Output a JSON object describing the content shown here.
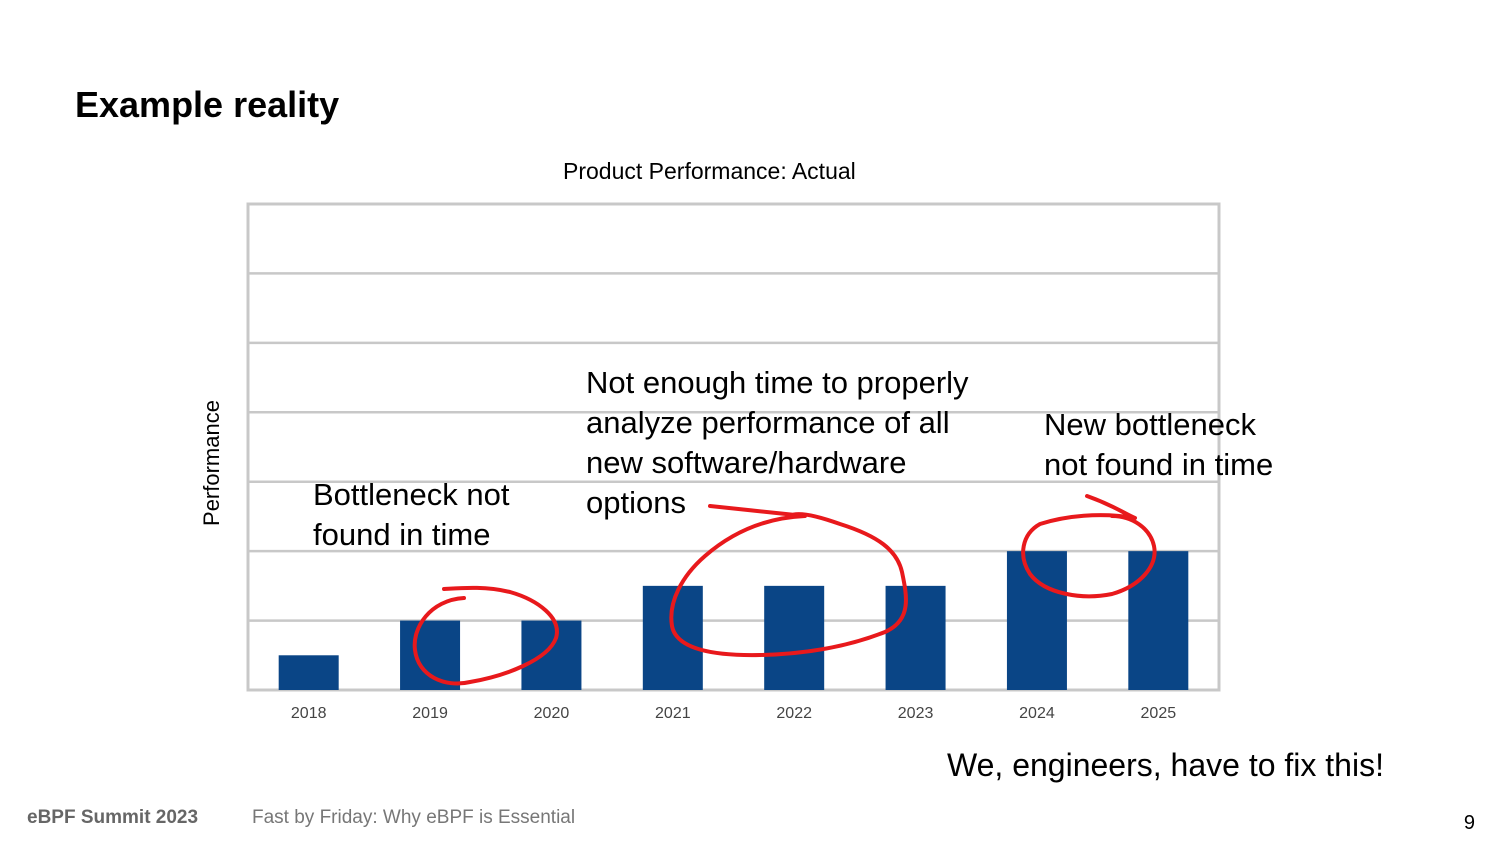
{
  "slide": {
    "title": "Example reality",
    "conclusion": "We, engineers, have to fix this!",
    "footer_event": "eBPF Summit 2023",
    "footer_talk": "Fast by Friday: Why eBPF is Essential",
    "page_number": "9"
  },
  "annotations": [
    {
      "text": "Bottleneck not\nfound in time"
    },
    {
      "text": "Not enough time to properly\nanalyze performance of all\nnew software/hardware\noptions"
    },
    {
      "text": "New bottleneck\nnot found in time"
    }
  ],
  "colors": {
    "bar": "#0a4586",
    "grid": "#c8c8c8",
    "annotation_ink": "#e8191c"
  },
  "chart_data": {
    "type": "bar",
    "title": "Product Performance: Actual",
    "xlabel": "",
    "ylabel": "Performance",
    "categories": [
      "2018",
      "2019",
      "2020",
      "2021",
      "2022",
      "2023",
      "2024",
      "2025"
    ],
    "values": [
      0.5,
      1,
      1,
      1.5,
      1.5,
      1.5,
      2,
      2
    ],
    "ylim": [
      0,
      7
    ],
    "grid": true,
    "legend": "none",
    "y_tick_labels_shown": false
  }
}
